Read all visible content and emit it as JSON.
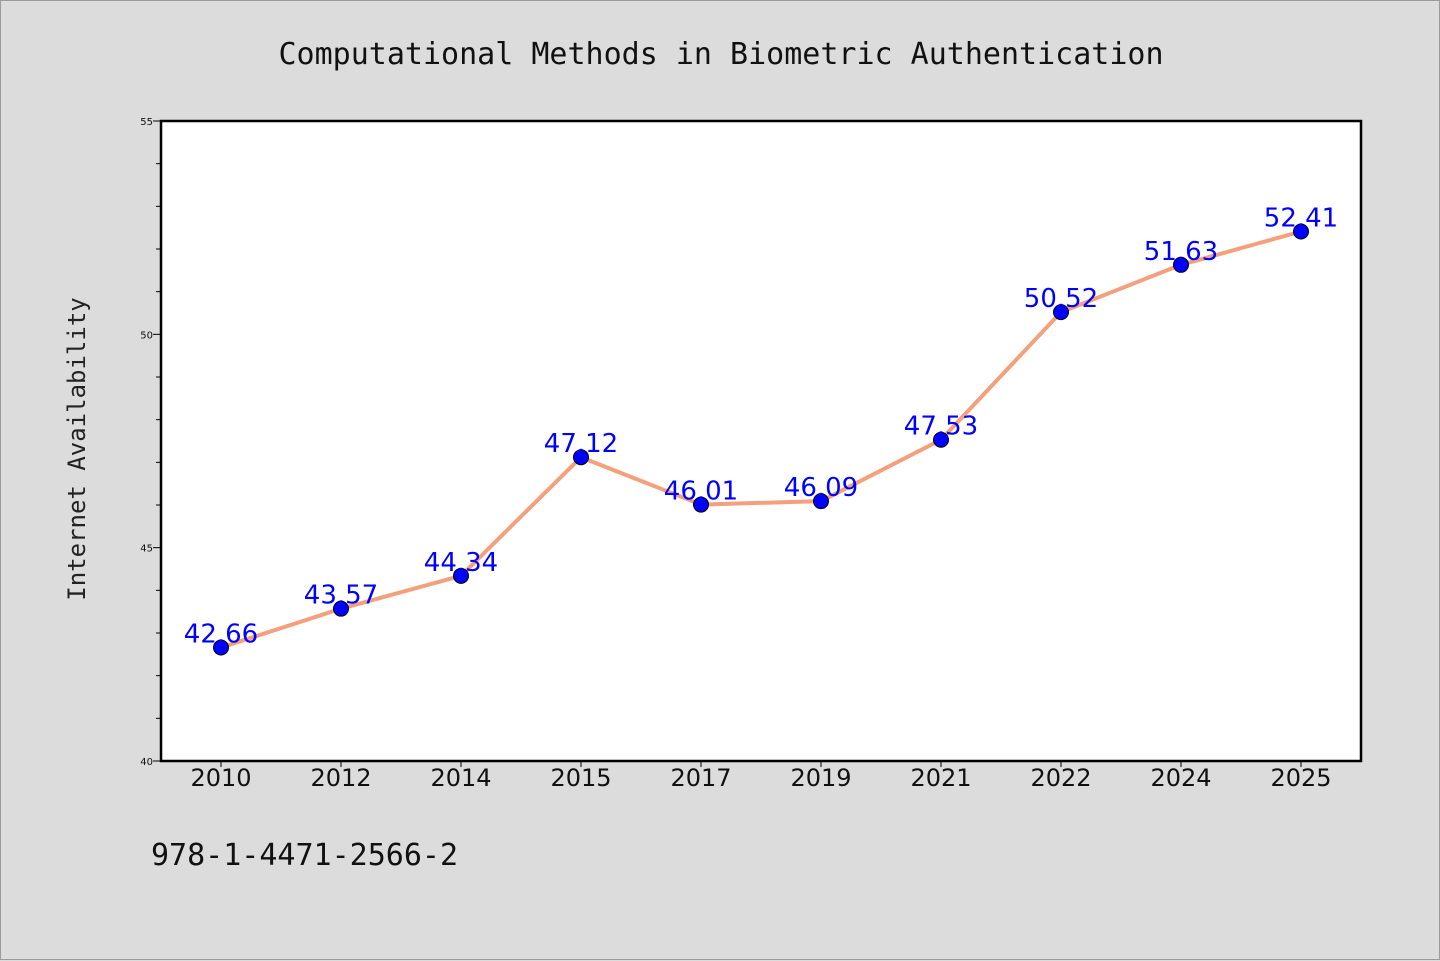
{
  "chart_data": {
    "type": "line",
    "title": "Computational Methods in Biometric Authentication",
    "xlabel": "",
    "ylabel": "Internet Availability",
    "categories": [
      "2010",
      "2012",
      "2014",
      "2015",
      "2017",
      "2019",
      "2021",
      "2022",
      "2024",
      "2025"
    ],
    "values": [
      42.66,
      43.57,
      44.34,
      47.12,
      46.01,
      46.09,
      47.53,
      50.52,
      51.63,
      52.41
    ],
    "data_labels": [
      "42.66",
      "43.57",
      "44.34",
      "47.12",
      "46.01",
      "46.09",
      "47.53",
      "50.52",
      "51.63",
      "52.41"
    ],
    "ylim": [
      40,
      55
    ],
    "yticks": [
      40,
      45,
      50,
      55
    ],
    "ytick_labels": [
      "40",
      "45",
      "50",
      "55"
    ],
    "grid": false,
    "legend": "none",
    "line_color": "#f4a07c",
    "marker_color": "#0000ff",
    "label_color": "#0000ff"
  },
  "footer": {
    "isbn": "978-1-4471-2566-2"
  }
}
